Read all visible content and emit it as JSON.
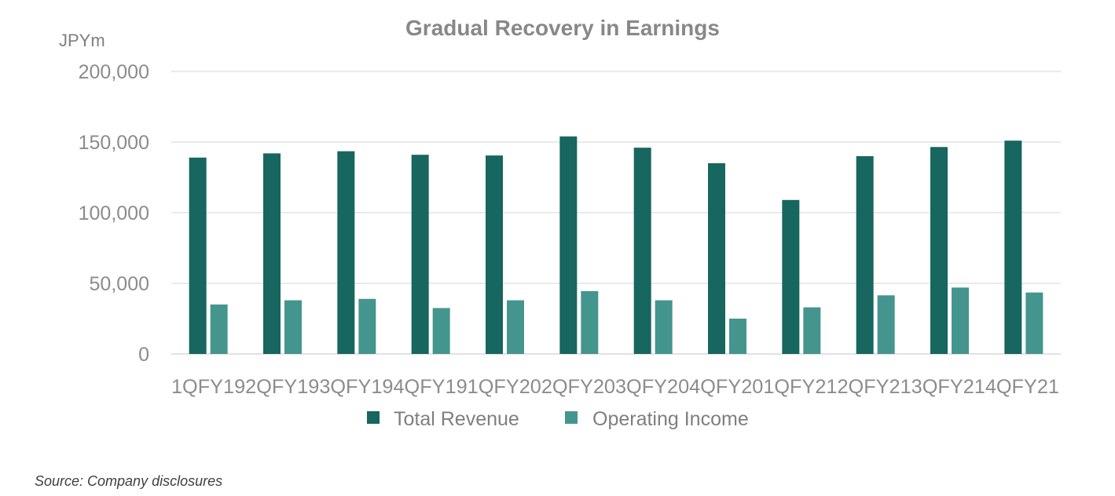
{
  "chart_data": {
    "type": "bar",
    "title": "Gradual Recovery in Earnings",
    "unit_label": "JPYm",
    "categories": [
      "1QFY19",
      "2QFY19",
      "3QFY19",
      "4QFY19",
      "1QFY20",
      "2QFY20",
      "3QFY20",
      "4QFY20",
      "1QFY21",
      "2QFY21",
      "3QFY21",
      "4QFY21"
    ],
    "x_tick_text": [
      "1QFY19",
      "2QFY19",
      "3QFY19",
      "4QFY19",
      "1QFY20",
      "2QFY20",
      "3QFY20",
      "4QFY20",
      "1QFY21",
      "2QFY21",
      "3QFY21",
      "4QFY21"
    ],
    "series": [
      {
        "name": "Total Revenue",
        "color": "#17665f",
        "values": [
          139000,
          142000,
          143500,
          141000,
          140500,
          154000,
          146000,
          135000,
          109000,
          140000,
          146500,
          151000
        ]
      },
      {
        "name": "Operating Income",
        "color": "#45958f",
        "values": [
          35000,
          38000,
          39000,
          32500,
          38000,
          44500,
          38000,
          25000,
          33000,
          41500,
          47000,
          43500
        ]
      }
    ],
    "ylim": [
      0,
      200000
    ],
    "y_ticks": [
      "0",
      "50,000",
      "100,000",
      "150,000",
      "200,000"
    ],
    "y_tick_values": [
      0,
      50000,
      100000,
      150000,
      200000
    ],
    "grid": true,
    "legend_position": "bottom"
  },
  "source": "Source: Company disclosures"
}
